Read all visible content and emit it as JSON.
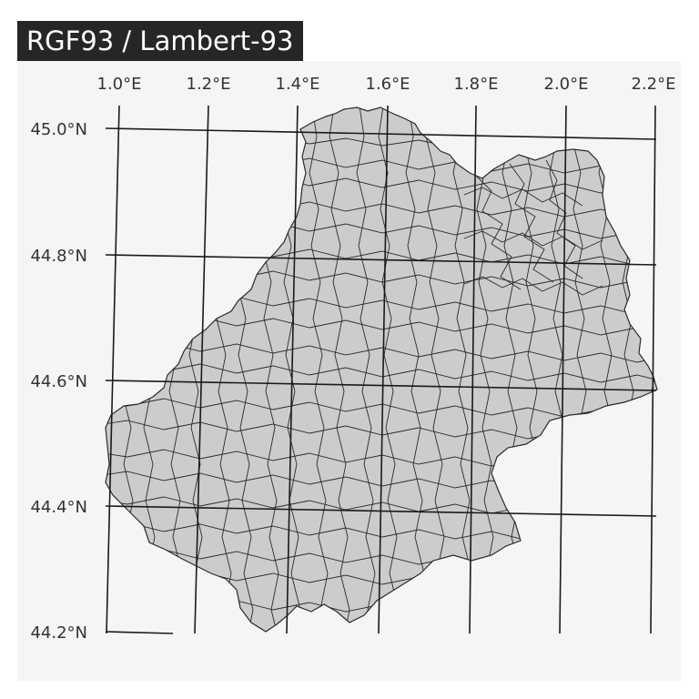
{
  "title": "RGF93 / Lambert-93",
  "map": {
    "region": "Lot department communes",
    "fill_color": "#cccccc",
    "border_color": "#2a2a2a",
    "panel_background": "#f5f5f5",
    "graticule_color": "#1a1a1a",
    "longitude_labels": [
      "1.0°E",
      "1.2°E",
      "1.4°E",
      "1.6°E",
      "1.8°E",
      "2.0°E",
      "2.2°E"
    ],
    "latitude_labels": [
      "45.0°N",
      "44.8°N",
      "44.6°N",
      "44.4°N",
      "44.2°N"
    ]
  }
}
